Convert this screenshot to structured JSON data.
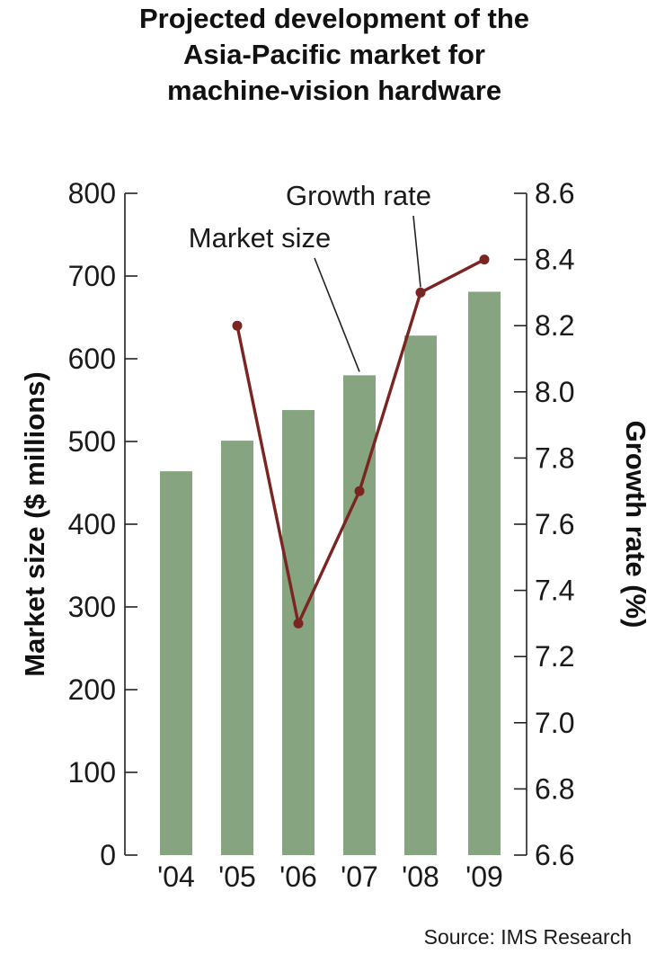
{
  "chart_data": {
    "type": "bar",
    "title_lines": [
      "Projected development of the",
      "Asia-Pacific market for",
      "machine-vision hardware"
    ],
    "categories": [
      "'04",
      "'05",
      "'06",
      "'07",
      "'08",
      "'09"
    ],
    "series": [
      {
        "name": "Market size",
        "type": "bar",
        "axis": "left",
        "color": "#86a47f",
        "values": [
          464,
          501,
          538,
          580,
          628,
          681
        ]
      },
      {
        "name": "Growth rate",
        "type": "line",
        "axis": "right",
        "color": "#7a2522",
        "values": [
          null,
          8.2,
          7.3,
          7.7,
          8.3,
          8.4
        ]
      }
    ],
    "ylabel": "Market size ($ millions)",
    "ylim": [
      0,
      800
    ],
    "yticks": [
      "0",
      "100",
      "200",
      "300",
      "400",
      "500",
      "600",
      "700",
      "800"
    ],
    "y2label": "Growth rate (%)",
    "y2lim": [
      6.6,
      8.6
    ],
    "y2ticks": [
      "6.6",
      "6.8",
      "7.0",
      "7.2",
      "7.4",
      "7.6",
      "7.8",
      "8.0",
      "8.2",
      "8.4",
      "8.6"
    ],
    "grid": false,
    "legend": "none",
    "annotations": [
      {
        "text": "Market size",
        "target_series": "Market size",
        "target_index": 3
      },
      {
        "text": "Growth rate",
        "target_series": "Growth rate",
        "target_index": 4
      }
    ],
    "source": "Source: IMS Research"
  }
}
